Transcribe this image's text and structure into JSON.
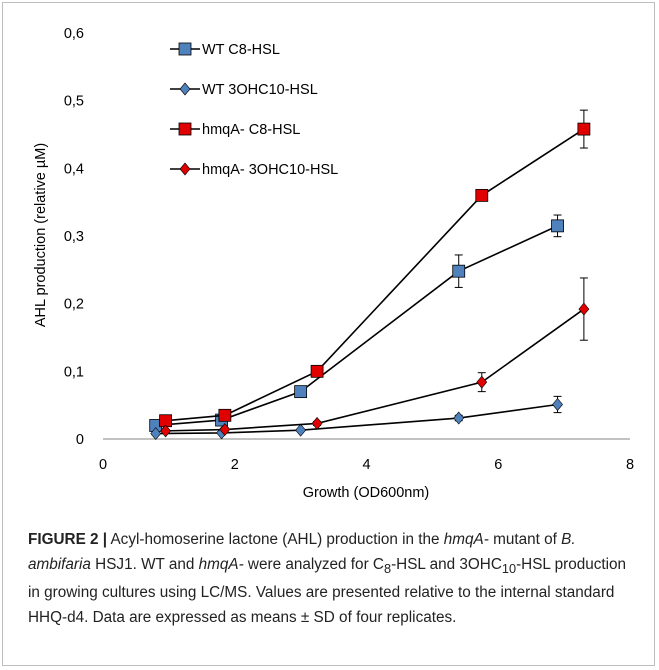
{
  "chart_data": {
    "type": "scatter",
    "xlabel": "Growth (OD600nm)",
    "ylabel": "AHL production (relative µM)",
    "xlim": [
      0,
      8
    ],
    "ylim": [
      0,
      0.6
    ],
    "xticks": [
      0,
      2,
      4,
      6,
      8
    ],
    "yticks": [
      0,
      0.1,
      0.2,
      0.3,
      0.4,
      0.5,
      0.6
    ],
    "xtick_labels": [
      "0",
      "2",
      "4",
      "6",
      "8"
    ],
    "ytick_labels": [
      "0",
      "0,1",
      "0,2",
      "0,3",
      "0,4",
      "0,5",
      "0,6"
    ],
    "grid": false,
    "legend_position": "top-left",
    "series": [
      {
        "name": "WT C8-HSL",
        "marker": "square",
        "color": "#4f81bd",
        "x": [
          0.8,
          1.8,
          3.0,
          5.4,
          6.9
        ],
        "y": [
          0.02,
          0.028,
          0.07,
          0.248,
          0.315
        ],
        "err": [
          0.004,
          0.004,
          0.006,
          0.024,
          0.016
        ]
      },
      {
        "name": "WT 3OHC10-HSL",
        "marker": "diamond",
        "color": "#4f81bd",
        "x": [
          0.8,
          1.8,
          3.0,
          5.4,
          6.9
        ],
        "y": [
          0.008,
          0.009,
          0.013,
          0.031,
          0.051
        ],
        "err": [
          0.002,
          0.002,
          0.002,
          0.004,
          0.012
        ]
      },
      {
        "name": "hmqA- C8-HSL",
        "marker": "square",
        "color": "#e00000",
        "x": [
          0.95,
          1.85,
          3.25,
          5.75,
          7.3
        ],
        "y": [
          0.027,
          0.035,
          0.1,
          0.36,
          0.458
        ],
        "err": [
          0.003,
          0.003,
          0.006,
          0.006,
          0.028
        ]
      },
      {
        "name": "hmqA- 3OHC10-HSL",
        "marker": "diamond",
        "color": "#e00000",
        "x": [
          0.95,
          1.85,
          3.25,
          5.75,
          7.3
        ],
        "y": [
          0.012,
          0.014,
          0.023,
          0.084,
          0.192
        ],
        "err": [
          0.002,
          0.002,
          0.003,
          0.014,
          0.046
        ]
      }
    ]
  },
  "caption": {
    "label": "FIGURE 2 |",
    "p1": " Acyl-homoserine lactone (AHL) production in the ",
    "i1": "hmqA-",
    "p2": " mutant of ",
    "i2": "B. ambifaria",
    "p3": " HSJ1. WT and ",
    "i3": "hmqA-",
    "p4": " were analyzed for C",
    "s1": "8",
    "p5": "-HSL and 3OHC",
    "s2": "10",
    "p6": "-HSL production in growing cultures using LC/MS. Values are presented relative to the internal standard HHQ-d4. Data are expressed as means ± SD of four replicates."
  }
}
